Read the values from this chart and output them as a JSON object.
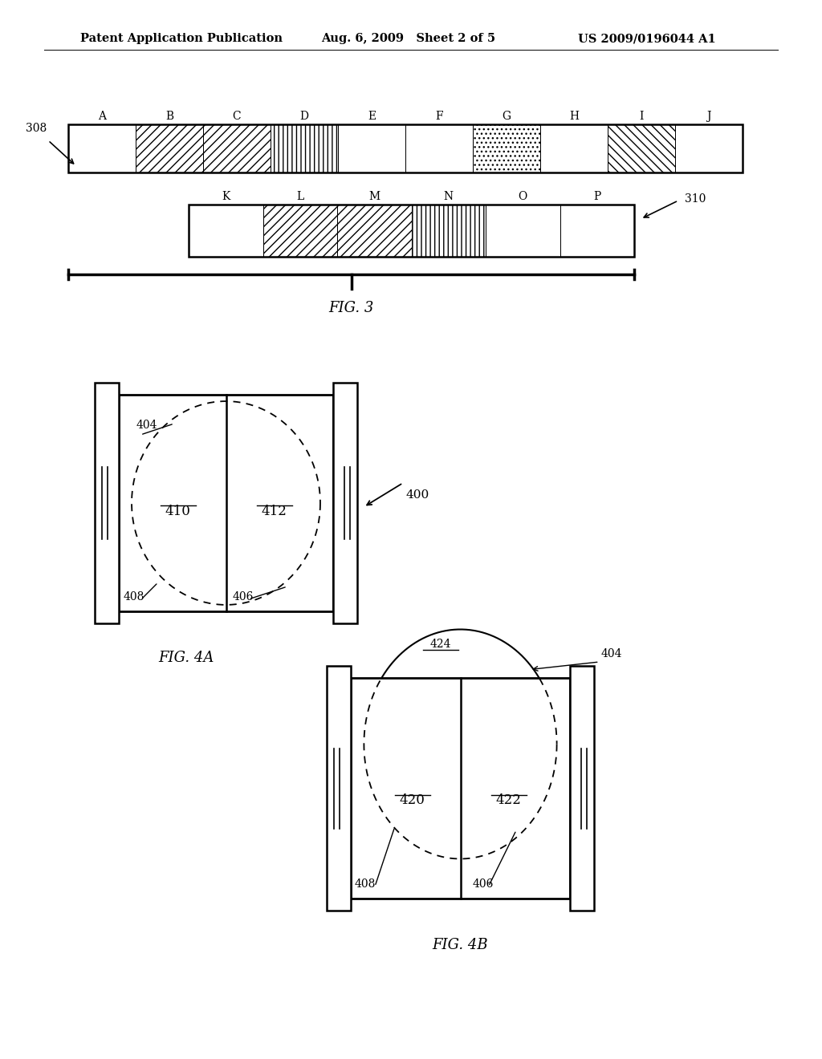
{
  "header_left": "Patent Application Publication",
  "header_mid": "Aug. 6, 2009   Sheet 2 of 5",
  "header_right": "US 2009/0196044 A1",
  "fig3_label": "FIG. 3",
  "fig4a_label": "FIG. 4A",
  "fig4b_label": "FIG. 4B",
  "fig3_ref1": "308",
  "fig3_ref2": "310",
  "fig3_top_labels": [
    "A",
    "B",
    "C",
    "D",
    "E",
    "F",
    "G",
    "H",
    "I",
    "J"
  ],
  "fig3_bot_labels": [
    "K",
    "L",
    "M",
    "N",
    "O",
    "P"
  ],
  "bg_color": "#ffffff"
}
